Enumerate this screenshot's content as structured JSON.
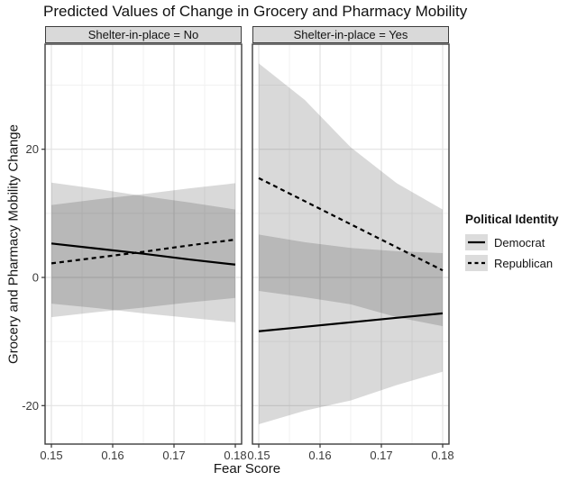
{
  "chart_data": {
    "type": "area",
    "title": "Predicted Values of Change in Grocery and Pharmacy Mobility",
    "xlabel": "Fear Score",
    "ylabel": "Grocery and Pharmacy Mobility Change",
    "legend": {
      "title": "Political Identity",
      "items": [
        {
          "label": "Democrat",
          "linestyle": "solid"
        },
        {
          "label": "Republican",
          "linestyle": "dashed"
        }
      ]
    },
    "x_samples": [
      0.15,
      0.1575,
      0.165,
      0.1725,
      0.18
    ],
    "xticks": [
      "0.15",
      "0.16",
      "0.17",
      "0.18"
    ],
    "xtick_values": [
      0.15,
      0.16,
      0.17,
      0.18
    ],
    "yticks": [
      20,
      0,
      -20
    ],
    "ytick_labels": [
      "20",
      "0",
      "-20"
    ],
    "ylim": [
      -26,
      36.4
    ],
    "grid_minor_x": [
      0.155,
      0.165,
      0.175
    ],
    "grid_minor_y": [
      30,
      10,
      -10
    ],
    "grid": true,
    "legend_position": "right",
    "panels": [
      {
        "strip_label": "Shelter-in-place = No",
        "series": [
          {
            "name": "Democrat",
            "style": "solid",
            "line": [
              5.3,
              4.5,
              3.7,
              2.8,
              2.0
            ],
            "upper": [
              14.8,
              13.8,
              12.7,
              11.7,
              10.6
            ],
            "lower": [
              -4.1,
              -4.8,
              -5.6,
              -6.3,
              -7.0
            ]
          },
          {
            "name": "Republican",
            "style": "dashed",
            "line": [
              2.2,
              3.1,
              4.0,
              5.0,
              5.9
            ],
            "upper": [
              11.3,
              12.2,
              13.0,
              13.9,
              14.7
            ],
            "lower": [
              -6.2,
              -5.4,
              -4.7,
              -3.9,
              -3.2
            ]
          }
        ]
      },
      {
        "strip_label": "Shelter-in-place = Yes",
        "series": [
          {
            "name": "Democrat",
            "style": "solid",
            "line": [
              -8.4,
              -7.7,
              -7.0,
              -6.3,
              -5.6
            ],
            "upper": [
              6.7,
              5.5,
              4.6,
              4.1,
              3.8
            ],
            "lower": [
              -22.9,
              -20.8,
              -19.2,
              -16.8,
              -14.7
            ]
          },
          {
            "name": "Republican",
            "style": "dashed",
            "line": [
              15.5,
              11.9,
              8.3,
              4.7,
              1.1
            ],
            "upper": [
              33.4,
              27.7,
              20.3,
              14.7,
              10.6
            ],
            "lower": [
              -2.1,
              -3.1,
              -4.2,
              -6.2,
              -7.6
            ]
          }
        ]
      }
    ],
    "colors": {
      "ribbon": "rgba(0,0,0,0.15)",
      "line": "#000000",
      "strip_bg": "#d9d9d9",
      "panel_border": "#3d3d3d",
      "grid_major": "#e3e3e3",
      "grid_minor": "#f1f1f1",
      "tick": "#333333",
      "tick_text": "#3a3a3a"
    }
  }
}
